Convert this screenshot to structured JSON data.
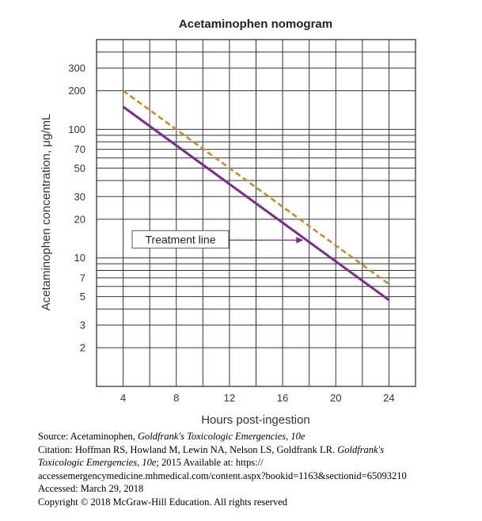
{
  "chart_data": {
    "type": "line",
    "title": "Acetaminophen nomogram",
    "xlabel": "Hours post-ingestion",
    "ylabel": "Acetaminophen concentration, μg/mL",
    "x_ticks": [
      4,
      8,
      12,
      16,
      20,
      24
    ],
    "y_ticks": [
      2,
      3,
      5,
      7,
      10,
      20,
      30,
      50,
      70,
      100,
      200,
      300
    ],
    "y_scale": "log",
    "xlim": [
      2,
      26
    ],
    "ylim": [
      1,
      500
    ],
    "grid": true,
    "series": [
      {
        "label": "solid",
        "style": "solid",
        "color": "#7b2a8e",
        "x": [
          4,
          24
        ],
        "y": [
          150,
          4.7
        ]
      },
      {
        "label": "dashed",
        "style": "dashed",
        "color": "#c98a2e",
        "x": [
          4,
          24
        ],
        "y": [
          200,
          6.25
        ]
      }
    ],
    "annotations": [
      {
        "text": "Treatment line",
        "points_to": "solid",
        "arrow_x": 17.8
      }
    ]
  },
  "source": {
    "line1_prefix": "Source: Acetaminophen, ",
    "line1_italic": "Goldfrank's Toxicologic Emergencies, 10e",
    "line2_prefix": "Citation: Hoffman RS, Howland M, Lewin NA, Nelson LS, Goldfrank LR. ",
    "line2_italic": "Goldfrank's",
    "line3_italic": "Toxicologic Emergencies, 10e",
    "line3_suffix": "; 2015 Available at: https://",
    "line4": "accessemergencymedicine.mhmedical.com/content.aspx?bookid=1163&sectionid=65093210",
    "line5": "Accessed: March 29, 2018",
    "line6": "Copyright © 2018 McGraw-Hill Education. All rights reserved"
  }
}
